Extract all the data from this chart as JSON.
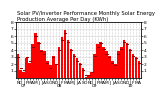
{
  "title": "Solar PV/Inverter Performance Monthly Solar Energy Production Average Per Day (KWh)",
  "bar_color": "#ff0000",
  "avg_color": "#990000",
  "background_color": "#ffffff",
  "grid_color": "#cccccc",
  "values": [
    3.5,
    1.2,
    0.8,
    2.8,
    2.2,
    4.8,
    6.5,
    5.2,
    4.0,
    3.8,
    2.5,
    1.8,
    3.2,
    2.0,
    4.5,
    5.8,
    6.8,
    5.5,
    4.2,
    3.5,
    2.8,
    2.2,
    1.5,
    0.2,
    0.5,
    0.8,
    3.5,
    4.8,
    5.2,
    4.5,
    3.8,
    3.2,
    2.5,
    2.0,
    3.8,
    4.5,
    5.5,
    5.0,
    4.2,
    3.5,
    3.0,
    2.5
  ],
  "avg_values": [
    3.0,
    1.5,
    1.2,
    3.0,
    2.5,
    4.5,
    6.0,
    5.0,
    3.8,
    3.5,
    2.2,
    1.5,
    3.0,
    2.0,
    4.0,
    5.5,
    6.5,
    5.2,
    4.0,
    3.2,
    2.5,
    2.0,
    1.2,
    0.5,
    0.5,
    0.8,
    3.2,
    4.5,
    5.0,
    4.2,
    3.5,
    3.0,
    2.2,
    1.8,
    3.5,
    4.2,
    5.2,
    4.8,
    4.0,
    3.2,
    2.8,
    2.2
  ],
  "ylim": [
    0,
    8
  ],
  "yticks": [
    1,
    2,
    3,
    4,
    5,
    6,
    7,
    8
  ],
  "labels": [
    "N",
    "D",
    "J\n07",
    "F",
    "M",
    "A",
    "M",
    "J",
    "J",
    "A",
    "S",
    "O",
    "N",
    "D",
    "J\n08",
    "F",
    "M",
    "A",
    "M",
    "J",
    "J",
    "A",
    "S",
    "O",
    "N",
    "D",
    "J\n09",
    "F",
    "M",
    "A",
    "M",
    "J",
    "J",
    "A",
    "S",
    "O",
    "N",
    "D",
    "J\n10",
    "F",
    "M",
    "A"
  ],
  "title_fontsize": 3.8,
  "tick_fontsize": 3.2
}
